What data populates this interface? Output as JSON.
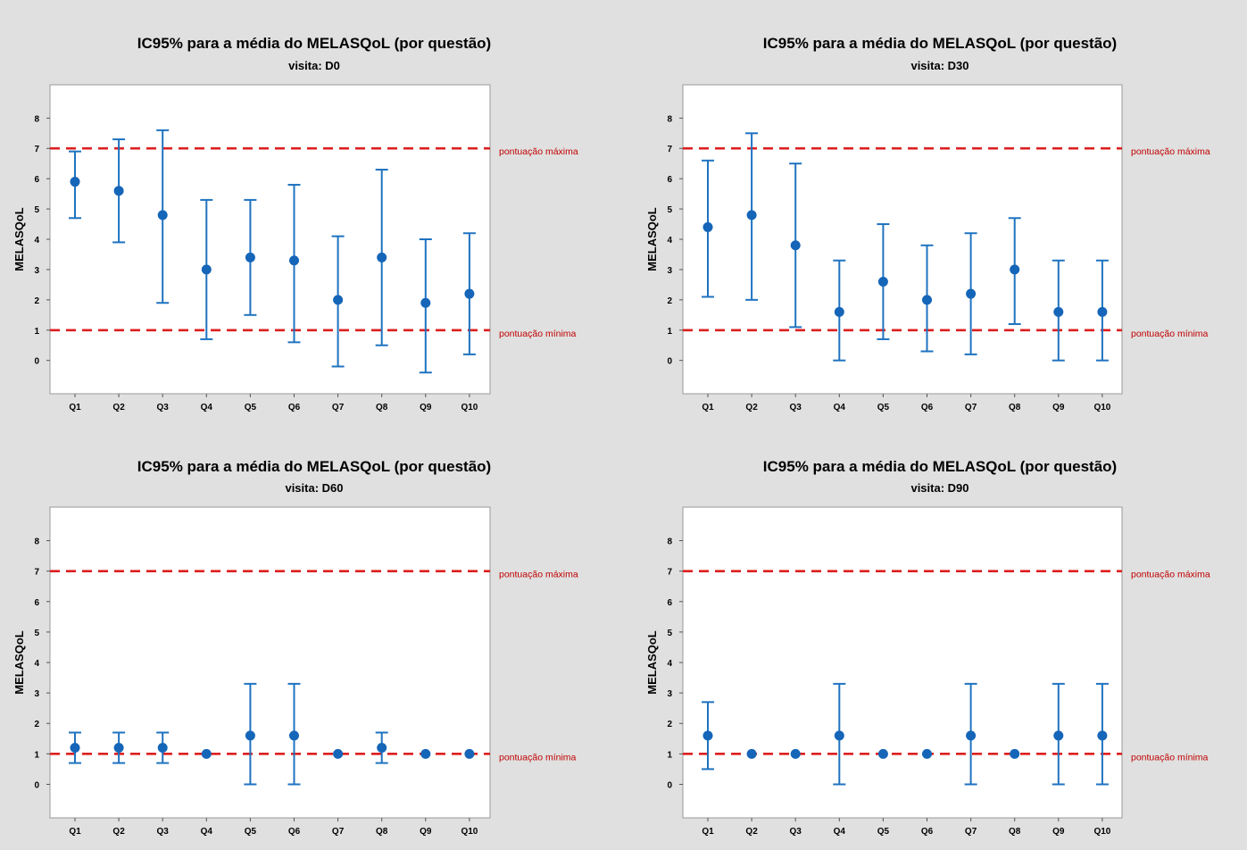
{
  "colors": {
    "background": "#e0e0e0",
    "plot_area": "#ffffff",
    "point": "#1565b8",
    "errorbar": "#1f73c0",
    "reference_line": "#dd1f1f",
    "reference_label": "#c00000",
    "text": "#000000"
  },
  "reference_labels": {
    "max": "pontuação máxima",
    "min": "pontuação mínima"
  },
  "chart_data": [
    {
      "type": "errorbar",
      "title": "IC95% para a média do MELASQoL (por questão)",
      "subtitle": "visita: D0",
      "ylabel": "MELASQoL",
      "categories": [
        "Q1",
        "Q2",
        "Q3",
        "Q4",
        "Q5",
        "Q6",
        "Q7",
        "Q8",
        "Q9",
        "Q10"
      ],
      "yticks": [
        "0",
        "1",
        "2",
        "3",
        "4",
        "5",
        "6",
        "7",
        "8"
      ],
      "ylim": [
        -1.1,
        9.1
      ],
      "reference_lines": [
        7,
        1
      ],
      "grid": false,
      "mean": [
        5.9,
        5.6,
        4.8,
        3.0,
        3.4,
        3.3,
        2.0,
        3.4,
        1.9,
        2.2
      ],
      "lower": [
        4.7,
        3.9,
        1.9,
        0.7,
        1.5,
        0.6,
        -0.2,
        0.5,
        -0.4,
        0.2
      ],
      "upper": [
        6.9,
        7.3,
        7.6,
        5.3,
        5.3,
        5.8,
        4.1,
        6.3,
        4.0,
        4.2
      ]
    },
    {
      "type": "errorbar",
      "title": "IC95% para a média do MELASQoL (por questão)",
      "subtitle": "visita: D30",
      "ylabel": "MELASQoL",
      "categories": [
        "Q1",
        "Q2",
        "Q3",
        "Q4",
        "Q5",
        "Q6",
        "Q7",
        "Q8",
        "Q9",
        "Q10"
      ],
      "yticks": [
        "0",
        "1",
        "2",
        "3",
        "4",
        "5",
        "6",
        "7",
        "8"
      ],
      "ylim": [
        -1.1,
        9.1
      ],
      "reference_lines": [
        7,
        1
      ],
      "grid": false,
      "mean": [
        4.4,
        4.8,
        3.8,
        1.6,
        2.6,
        2.0,
        2.2,
        3.0,
        1.6,
        1.6
      ],
      "lower": [
        2.1,
        2.0,
        1.1,
        0.0,
        0.7,
        0.3,
        0.2,
        1.2,
        0.0,
        0.0
      ],
      "upper": [
        6.6,
        7.5,
        6.5,
        3.3,
        4.5,
        3.8,
        4.2,
        4.7,
        3.3,
        3.3
      ]
    },
    {
      "type": "errorbar",
      "title": "IC95% para a média do MELASQoL (por questão)",
      "subtitle": "visita: D60",
      "ylabel": "MELASQoL",
      "categories": [
        "Q1",
        "Q2",
        "Q3",
        "Q4",
        "Q5",
        "Q6",
        "Q7",
        "Q8",
        "Q9",
        "Q10"
      ],
      "yticks": [
        "0",
        "1",
        "2",
        "3",
        "4",
        "5",
        "6",
        "7",
        "8"
      ],
      "ylim": [
        -1.1,
        9.1
      ],
      "reference_lines": [
        7,
        1
      ],
      "grid": false,
      "mean": [
        1.2,
        1.2,
        1.2,
        1.0,
        1.6,
        1.6,
        1.0,
        1.2,
        1.0,
        1.0
      ],
      "lower": [
        0.7,
        0.7,
        0.7,
        null,
        0.0,
        0.0,
        null,
        0.7,
        null,
        null
      ],
      "upper": [
        1.7,
        1.7,
        1.7,
        null,
        3.3,
        3.3,
        null,
        1.7,
        null,
        null
      ]
    },
    {
      "type": "errorbar",
      "title": "IC95% para a média do MELASQoL (por questão)",
      "subtitle": "visita: D90",
      "ylabel": "MELASQoL",
      "categories": [
        "Q1",
        "Q2",
        "Q3",
        "Q4",
        "Q5",
        "Q6",
        "Q7",
        "Q8",
        "Q9",
        "Q10"
      ],
      "yticks": [
        "0",
        "1",
        "2",
        "3",
        "4",
        "5",
        "6",
        "7",
        "8"
      ],
      "ylim": [
        -1.1,
        9.1
      ],
      "reference_lines": [
        7,
        1
      ],
      "grid": false,
      "mean": [
        1.6,
        1.0,
        1.0,
        1.6,
        1.0,
        1.0,
        1.6,
        1.0,
        1.6,
        1.6
      ],
      "lower": [
        0.5,
        null,
        null,
        0.0,
        null,
        null,
        0.0,
        null,
        0.0,
        0.0
      ],
      "upper": [
        2.7,
        null,
        null,
        3.3,
        null,
        null,
        3.3,
        null,
        3.3,
        3.3
      ]
    }
  ]
}
